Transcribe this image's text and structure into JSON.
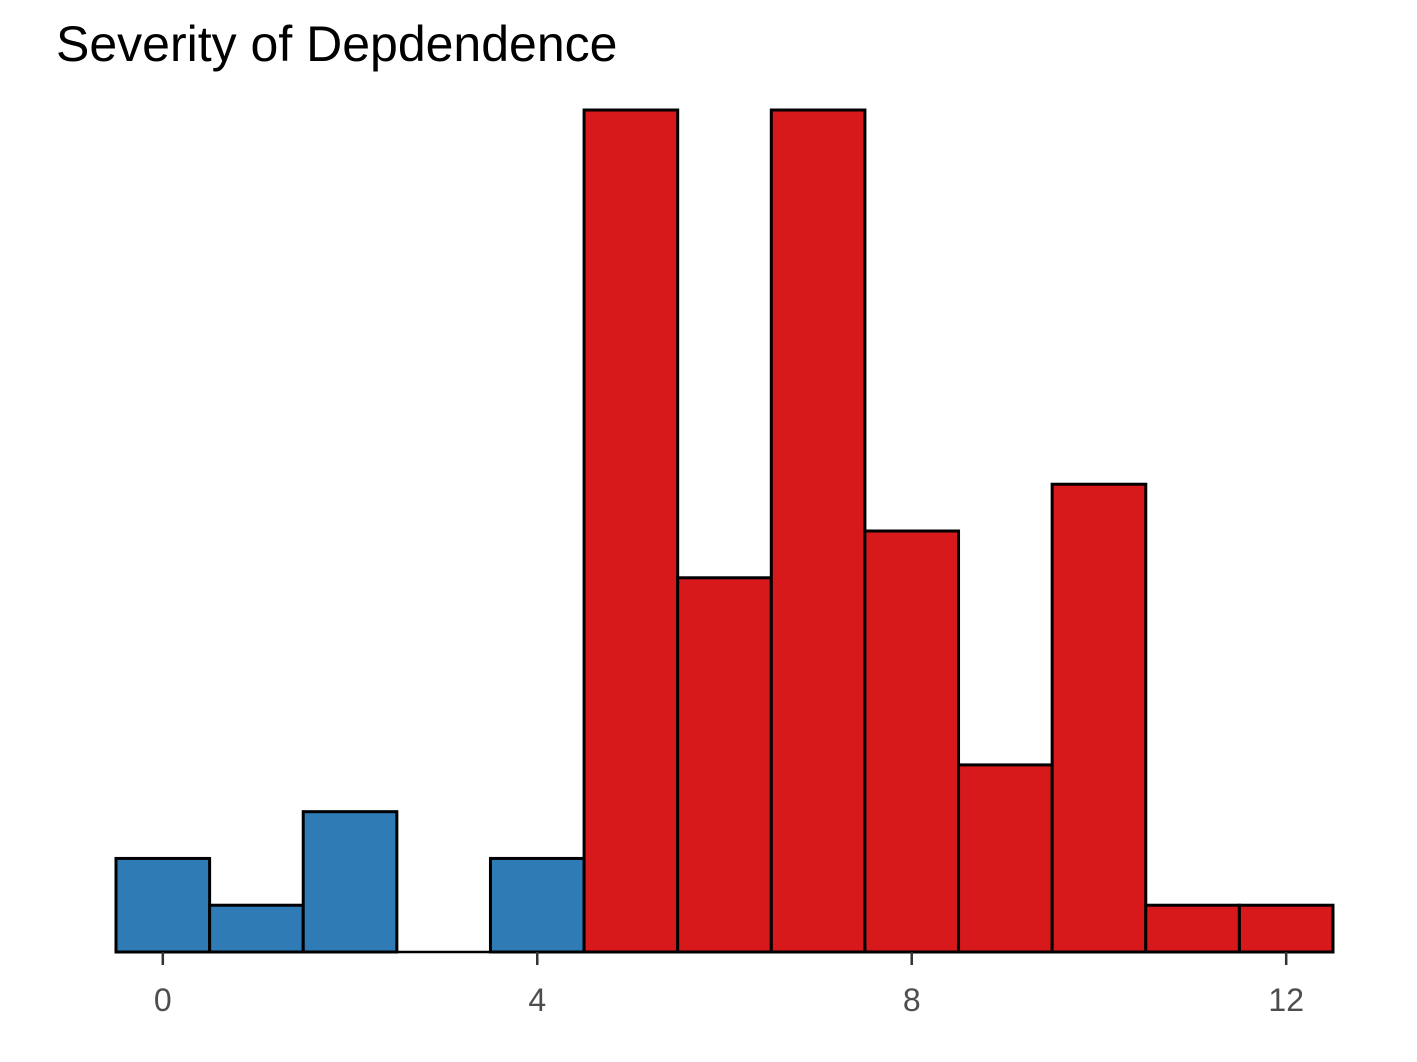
{
  "chart_data": {
    "type": "bar",
    "title": "Severity of Depdendence",
    "xlabel": "",
    "ylabel": "",
    "categories": [
      0,
      1,
      2,
      3,
      4,
      5,
      6,
      7,
      8,
      9,
      10,
      11,
      12
    ],
    "values": [
      2,
      1,
      3,
      0,
      2,
      18,
      8,
      18,
      9,
      4,
      10,
      1,
      1
    ],
    "bar_colors": [
      "#2e7bb6",
      "#2e7bb6",
      "#2e7bb6",
      "#2e7bb6",
      "#2e7bb6",
      "#d7191c",
      "#d7191c",
      "#d7191c",
      "#d7191c",
      "#d7191c",
      "#d7191c",
      "#d7191c",
      "#d7191c"
    ],
    "x_ticks": [
      0,
      4,
      8,
      12
    ],
    "x_tick_labels": [
      "0",
      "4",
      "8",
      "12"
    ],
    "xlim": [
      -0.5,
      12.5
    ],
    "ylim": [
      0,
      18
    ],
    "grid": false,
    "legend": "none",
    "colors": {
      "low": "#2e7bb6",
      "high": "#d7191c",
      "outline": "#000000",
      "axis_text": "#4d4d4d"
    }
  }
}
